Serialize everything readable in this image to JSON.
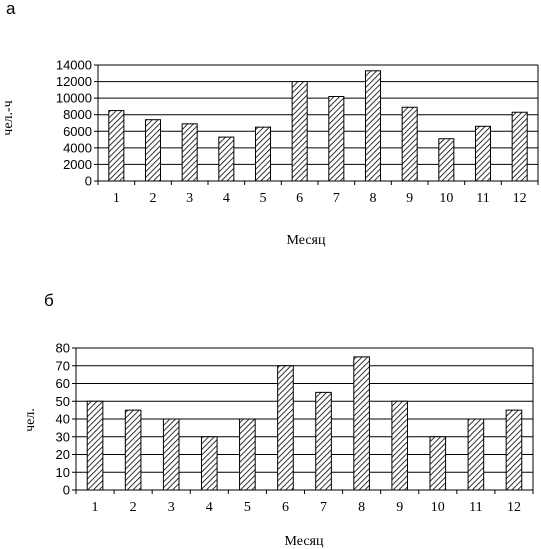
{
  "chart_data": [
    {
      "type": "bar",
      "panel_label": "а",
      "categories": [
        "1",
        "2",
        "3",
        "4",
        "5",
        "6",
        "7",
        "8",
        "9",
        "10",
        "11",
        "12"
      ],
      "values": [
        8500,
        7400,
        6900,
        5300,
        6500,
        12000,
        10200,
        13300,
        8900,
        5100,
        6600,
        8300
      ],
      "xlabel": "Месяц",
      "ylabel": "чел.-ч",
      "ylim": [
        0,
        14000
      ],
      "yticks": [
        "0",
        "2000",
        "4000",
        "6000",
        "8000",
        "10000",
        "12000",
        "14000"
      ],
      "grid": true,
      "bar_fill": "hatched",
      "bar_color": "#000000"
    },
    {
      "type": "bar",
      "panel_label": "б",
      "categories": [
        "1",
        "2",
        "3",
        "4",
        "5",
        "6",
        "7",
        "8",
        "9",
        "10",
        "11",
        "12"
      ],
      "values": [
        50,
        45,
        40,
        30,
        40,
        70,
        55,
        75,
        50,
        30,
        40,
        45
      ],
      "xlabel": "Месяц",
      "ylabel": "чел.",
      "ylim": [
        0,
        80
      ],
      "yticks": [
        "0",
        "10",
        "20",
        "30",
        "40",
        "50",
        "60",
        "70",
        "80"
      ],
      "grid": true,
      "bar_fill": "hatched",
      "bar_color": "#000000"
    }
  ]
}
